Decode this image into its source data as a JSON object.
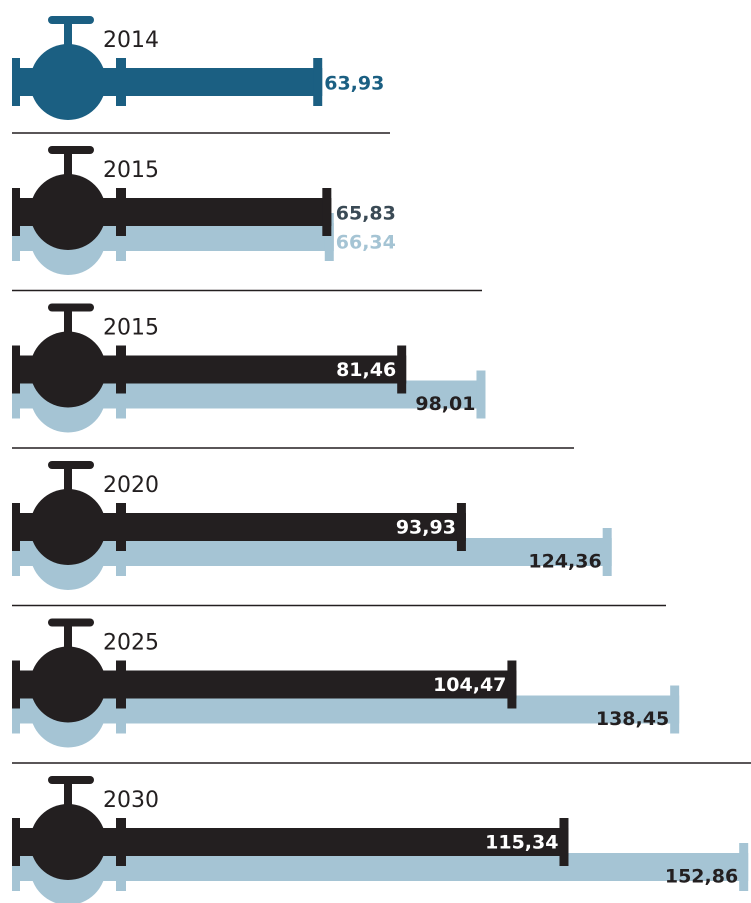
{
  "chart_data": {
    "type": "pipe-bar",
    "categories": [
      "2014",
      "2015",
      "2015",
      "2020",
      "2025",
      "2030"
    ],
    "series": [
      {
        "color": "#1b5f82",
        "values": [
          63.93,
          null,
          null,
          null,
          null,
          null
        ],
        "value_labels": [
          "63,93",
          null,
          null,
          null,
          null,
          null
        ]
      },
      {
        "color": "#231f20",
        "values": [
          null,
          65.83,
          81.46,
          93.93,
          104.47,
          115.34
        ],
        "value_labels": [
          null,
          "65,83",
          "81,46",
          "93,93",
          "104,47",
          "115,34"
        ]
      },
      {
        "color": "#a5c4d4",
        "values": [
          null,
          66.34,
          98.01,
          124.36,
          138.45,
          152.86
        ],
        "value_labels": [
          null,
          "66,34",
          "98,01",
          "124,36",
          "138,45",
          "152,86"
        ]
      }
    ]
  }
}
